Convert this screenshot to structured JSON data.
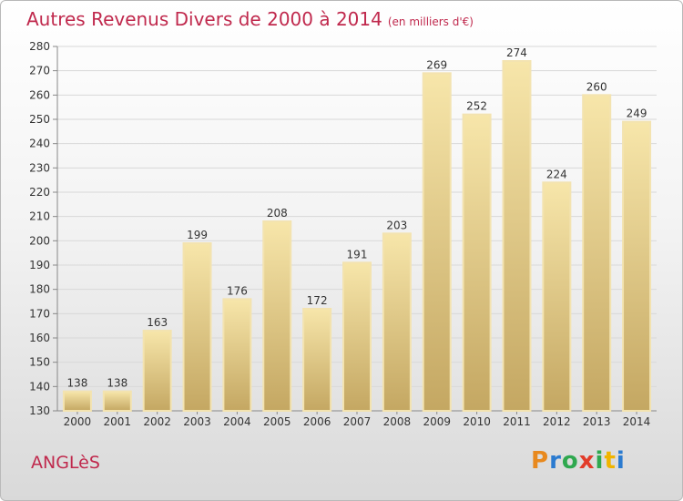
{
  "title": {
    "main": "Autres Revenus Divers de 2000 à 2014",
    "sub": "(en milliers d'€)"
  },
  "place": "ANGLèS",
  "logo": {
    "letters": [
      "P",
      "r",
      "o",
      "x",
      "i",
      "t",
      "i"
    ],
    "colors": [
      "#e8891e",
      "#2b7bd0",
      "#2fa84f",
      "#e23c2a",
      "#2fa84f",
      "#f0b400",
      "#2b7bd0"
    ]
  },
  "colors": {
    "accent": "#c0294d",
    "bar_light": "#f6e3a4",
    "bar_dark": "#c7a964"
  },
  "chart_data": {
    "type": "bar",
    "categories": [
      "2000",
      "2001",
      "2002",
      "2003",
      "2004",
      "2005",
      "2006",
      "2007",
      "2008",
      "2009",
      "2010",
      "2011",
      "2012",
      "2013",
      "2014"
    ],
    "values": [
      138,
      138,
      163,
      199,
      176,
      208,
      172,
      191,
      203,
      269,
      252,
      274,
      224,
      260,
      249
    ],
    "title": "Autres Revenus Divers de 2000 à 2014",
    "xlabel": "",
    "ylabel": "",
    "ylim": [
      130,
      280
    ],
    "yticks": [
      130,
      140,
      150,
      160,
      170,
      180,
      190,
      200,
      210,
      220,
      230,
      240,
      250,
      260,
      270,
      280
    ],
    "grid": true
  }
}
